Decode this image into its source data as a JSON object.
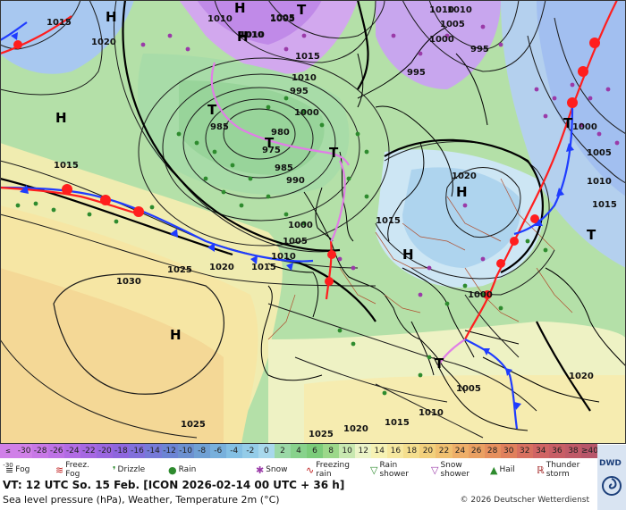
{
  "map": {
    "pressure_labels": [
      "1015",
      "1010",
      "1005",
      "1020",
      "1010",
      "995",
      "1010",
      "985",
      "980",
      "975",
      "985",
      "990",
      "995",
      "1000",
      "1000",
      "1005",
      "1010",
      "1015",
      "1020",
      "1025",
      "1030",
      "1010",
      "1015",
      "1020",
      "1015",
      "1010",
      "1005",
      "1000",
      "1005",
      "1010",
      "1015",
      "1020",
      "1025",
      "1025",
      "1020",
      "1015",
      "1010",
      "1005",
      "1000",
      "995",
      "1000",
      "1005",
      "1010",
      "1015"
    ],
    "pressure_centers": [
      "H",
      "T",
      "H",
      "T",
      "T",
      "T",
      "H",
      "H",
      "H",
      "H",
      "T",
      "H",
      "T",
      "T"
    ],
    "colors": {
      "cold_front": "#1f3cff",
      "warm_front": "#ff1e1e",
      "occlusion": "#e07ee6",
      "isobar": "#1a1a1a",
      "coast": "#000000",
      "border": "#b05030"
    }
  },
  "scale": {
    "unit": "°C",
    "values": [
      "-30",
      "-28",
      "-26",
      "-24",
      "-22",
      "-20",
      "-18",
      "-16",
      "-14",
      "-12",
      "-10",
      "-8",
      "-6",
      "-4",
      "-2",
      "0",
      "2",
      "4",
      "6",
      "8",
      "10",
      "12",
      "14",
      "16",
      "18",
      "20",
      "22",
      "24",
      "26",
      "28",
      "30",
      "32",
      "34",
      "36",
      "38",
      "≥40"
    ],
    "low_end": "≤ -30",
    "colors": [
      "#d080e8",
      "#c878e6",
      "#be72e6",
      "#b26ce4",
      "#a668e2",
      "#9a66e0",
      "#8e66de",
      "#8270dc",
      "#767ad8",
      "#6c84d4",
      "#6c90d0",
      "#70a0d4",
      "#78b0dc",
      "#84c0e4",
      "#94cce8",
      "#a8d8ec",
      "#9ad8a6",
      "#88d28c",
      "#7ccc7a",
      "#9cd88a",
      "#c8e8b0",
      "#ecf4c8",
      "#f6f2b4",
      "#f6e8a0",
      "#f4de8e",
      "#f2d07c",
      "#f0c070",
      "#eeae68",
      "#eaa062",
      "#e6905e",
      "#e0805c",
      "#d87060",
      "#d06464",
      "#c85e66",
      "#c05a68",
      "#b8566a"
    ]
  },
  "legend": [
    "Fog",
    "Freez. Fog",
    "Drizzle",
    "Rain",
    "Snow",
    "Freezing rain",
    "Rain shower",
    "Snow shower",
    "Hail",
    "Thunder storm"
  ],
  "legend_icons": [
    "fog-icon",
    "freezing-fog-icon",
    "drizzle-icon",
    "rain-icon",
    "snow-icon",
    "freezing-rain-icon",
    "rain-shower-icon",
    "snow-shower-icon",
    "hail-icon",
    "thunderstorm-icon"
  ],
  "info": {
    "vt": "VT: 12 UTC So.  15 Feb. [ICON 2026-02-14  00 UTC + 36 h]",
    "subtitle": "Sea level pressure (hPa), Weather, Temperature 2m (°C)",
    "copyright": "© 2026 Deutscher Wetterdienst",
    "logo": "DWD"
  }
}
